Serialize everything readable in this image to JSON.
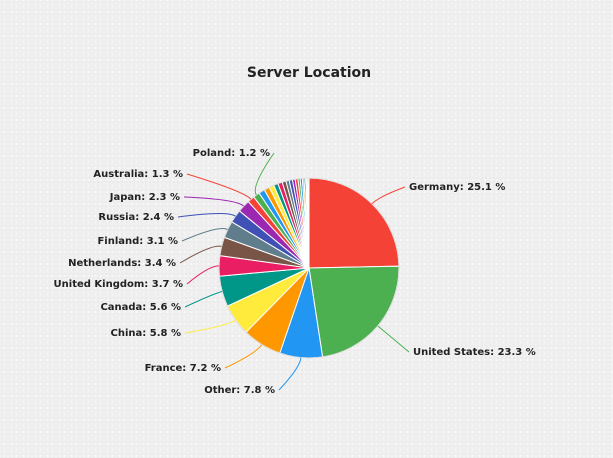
{
  "chart_data": {
    "type": "pie",
    "title": "Server Location",
    "value_suffix": " %",
    "slices": [
      {
        "label": "Germany",
        "value": 25.1,
        "color": "#f44336"
      },
      {
        "label": "United States",
        "value": 23.3,
        "color": "#4caf50"
      },
      {
        "label": "Other",
        "value": 7.8,
        "color": "#2196f3"
      },
      {
        "label": "France",
        "value": 7.2,
        "color": "#ff9800"
      },
      {
        "label": "China",
        "value": 5.8,
        "color": "#ffeb3b"
      },
      {
        "label": "Canada",
        "value": 5.6,
        "color": "#009688"
      },
      {
        "label": "United Kingdom",
        "value": 3.7,
        "color": "#e91e63"
      },
      {
        "label": "Netherlands",
        "value": 3.4,
        "color": "#795548"
      },
      {
        "label": "Finland",
        "value": 3.1,
        "color": "#607d8b"
      },
      {
        "label": "Russia",
        "value": 2.4,
        "color": "#3f51b5"
      },
      {
        "label": "Japan",
        "value": 2.3,
        "color": "#9c27b0"
      },
      {
        "label": "Australia",
        "value": 1.3,
        "color": "#f44336"
      },
      {
        "label": "Poland",
        "value": 1.2,
        "color": "#4caf50"
      },
      {
        "label": "",
        "value": 1.1,
        "color": "#2196f3"
      },
      {
        "label": "",
        "value": 1.0,
        "color": "#ff9800"
      },
      {
        "label": "",
        "value": 0.9,
        "color": "#ffeb3b"
      },
      {
        "label": "",
        "value": 0.8,
        "color": "#009688"
      },
      {
        "label": "",
        "value": 0.8,
        "color": "#e91e63"
      },
      {
        "label": "",
        "value": 0.7,
        "color": "#795548"
      },
      {
        "label": "",
        "value": 0.6,
        "color": "#607d8b"
      },
      {
        "label": "",
        "value": 0.6,
        "color": "#3f51b5"
      },
      {
        "label": "",
        "value": 0.5,
        "color": "#9c27b0"
      },
      {
        "label": "",
        "value": 0.5,
        "color": "#f44336"
      },
      {
        "label": "",
        "value": 0.4,
        "color": "#4caf50"
      },
      {
        "label": "",
        "value": 0.4,
        "color": "#2196f3"
      },
      {
        "label": "",
        "value": 0.3,
        "color": "#ff9800"
      },
      {
        "label": "",
        "value": 0.3,
        "color": "#009688"
      },
      {
        "label": "",
        "value": 0.2,
        "color": "#e91e63"
      },
      {
        "label": "",
        "value": 0.2,
        "color": "#795548"
      },
      {
        "label": "",
        "value": 0.2,
        "color": "#607d8b"
      }
    ]
  }
}
